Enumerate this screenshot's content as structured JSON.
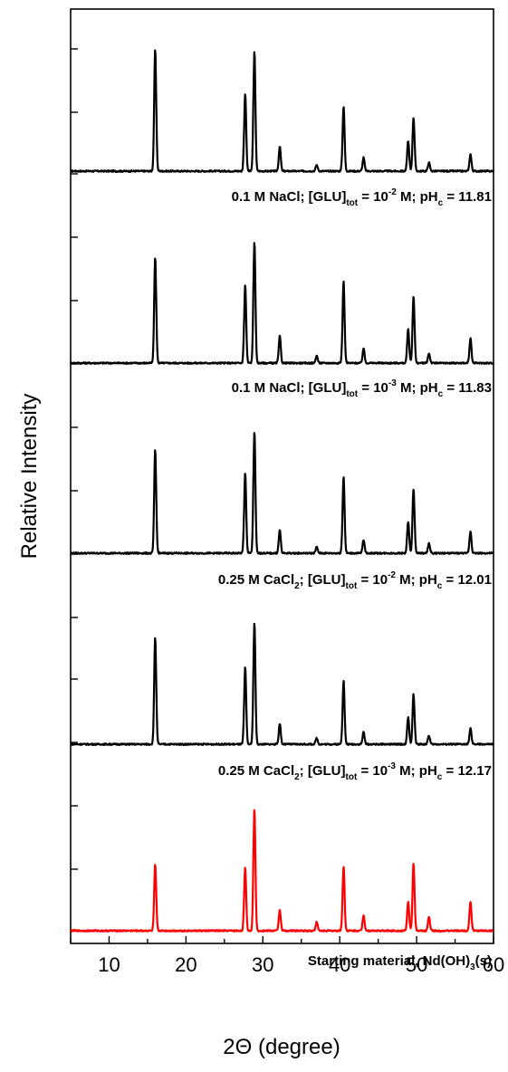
{
  "chart_data": {
    "type": "line",
    "xlabel": "2Θ (degree)",
    "ylabel": "Relative Intensity",
    "xlim": [
      5,
      60
    ],
    "xticks": [
      10,
      20,
      30,
      40,
      50,
      60
    ],
    "yticks_shown_without_labels": true,
    "grid": false,
    "series": [
      {
        "name": "0.1 M NaCl; [GLU]tot = 10-2 M; pHc = 11.81",
        "color": "#000000",
        "peaks": [
          {
            "x": 16.0,
            "y": 1.0
          },
          {
            "x": 27.7,
            "y": 0.64
          },
          {
            "x": 28.9,
            "y": 0.98
          },
          {
            "x": 32.2,
            "y": 0.2
          },
          {
            "x": 37.0,
            "y": 0.05
          },
          {
            "x": 40.5,
            "y": 0.53
          },
          {
            "x": 43.1,
            "y": 0.11
          },
          {
            "x": 48.9,
            "y": 0.25
          },
          {
            "x": 49.6,
            "y": 0.44
          },
          {
            "x": 51.6,
            "y": 0.07
          },
          {
            "x": 57.0,
            "y": 0.14
          }
        ]
      },
      {
        "name": "0.1 M NaCl; [GLU]tot = 10-3 M; pHc = 11.83",
        "color": "#000000",
        "peaks": [
          {
            "x": 16.0,
            "y": 0.87
          },
          {
            "x": 27.7,
            "y": 0.64
          },
          {
            "x": 28.9,
            "y": 1.0
          },
          {
            "x": 32.2,
            "y": 0.22
          },
          {
            "x": 37.0,
            "y": 0.06
          },
          {
            "x": 40.5,
            "y": 0.67
          },
          {
            "x": 43.1,
            "y": 0.12
          },
          {
            "x": 48.9,
            "y": 0.28
          },
          {
            "x": 49.6,
            "y": 0.55
          },
          {
            "x": 51.6,
            "y": 0.08
          },
          {
            "x": 57.0,
            "y": 0.2
          }
        ]
      },
      {
        "name": "0.25 M CaCl2; [GLU]tot = 10-2 M; pHc = 12.01",
        "color": "#000000",
        "peaks": [
          {
            "x": 16.0,
            "y": 0.85
          },
          {
            "x": 27.7,
            "y": 0.66
          },
          {
            "x": 28.9,
            "y": 1.0
          },
          {
            "x": 32.2,
            "y": 0.19
          },
          {
            "x": 37.0,
            "y": 0.05
          },
          {
            "x": 40.5,
            "y": 0.63
          },
          {
            "x": 43.1,
            "y": 0.11
          },
          {
            "x": 48.9,
            "y": 0.26
          },
          {
            "x": 49.6,
            "y": 0.53
          },
          {
            "x": 51.6,
            "y": 0.08
          },
          {
            "x": 57.0,
            "y": 0.18
          }
        ]
      },
      {
        "name": "0.25 M CaCl2; [GLU]tot = 10-3 M; pHc = 12.17",
        "color": "#000000",
        "peaks": [
          {
            "x": 16.0,
            "y": 0.88
          },
          {
            "x": 27.7,
            "y": 0.63
          },
          {
            "x": 28.9,
            "y": 1.0
          },
          {
            "x": 32.2,
            "y": 0.17
          },
          {
            "x": 37.0,
            "y": 0.05
          },
          {
            "x": 40.5,
            "y": 0.52
          },
          {
            "x": 43.1,
            "y": 0.1
          },
          {
            "x": 48.9,
            "y": 0.22
          },
          {
            "x": 49.6,
            "y": 0.41
          },
          {
            "x": 51.6,
            "y": 0.07
          },
          {
            "x": 57.0,
            "y": 0.13
          }
        ]
      },
      {
        "name": "Starting material, Nd(OH)3(s)",
        "color": "#ff0000",
        "peaks": [
          {
            "x": 16.0,
            "y": 0.54
          },
          {
            "x": 27.7,
            "y": 0.52
          },
          {
            "x": 28.9,
            "y": 1.0
          },
          {
            "x": 32.2,
            "y": 0.17
          },
          {
            "x": 37.0,
            "y": 0.07
          },
          {
            "x": 40.5,
            "y": 0.53
          },
          {
            "x": 43.1,
            "y": 0.13
          },
          {
            "x": 48.9,
            "y": 0.24
          },
          {
            "x": 49.6,
            "y": 0.55
          },
          {
            "x": 51.6,
            "y": 0.11
          },
          {
            "x": 57.0,
            "y": 0.24
          }
        ]
      }
    ],
    "annotations": [
      {
        "main": "0.1 M NaCl; [GLU]",
        "sub": "tot",
        "mid": " = 10",
        "sup": "-2",
        "mid2": " M; pH",
        "sub2": "c",
        "tail": " = 11.81",
        "color": "#000000"
      },
      {
        "main": "0.1 M NaCl; [GLU]",
        "sub": "tot",
        "mid": " = 10",
        "sup": "-3",
        "mid2": " M; pH",
        "sub2": "c",
        "tail": " = 11.83",
        "color": "#000000"
      },
      {
        "main": "0.25 M CaCl",
        "sub0": "2",
        "pre": "; [GLU]",
        "sub": "tot",
        "mid": " = 10",
        "sup": "-2",
        "mid2": " M; pH",
        "sub2": "c",
        "tail": " = 12.01",
        "color": "#000000"
      },
      {
        "main": "0.25 M CaCl",
        "sub0": "2",
        "pre": "; [GLU]",
        "sub": "tot",
        "mid": " = 10",
        "sup": "-3",
        "mid2": " M; pH",
        "sub2": "c",
        "tail": " = 12.17",
        "color": "#000000"
      },
      {
        "main": "Starting material, Nd(OH)",
        "sub": "3",
        "tail": "(s)",
        "color": "#ff0000"
      }
    ]
  }
}
